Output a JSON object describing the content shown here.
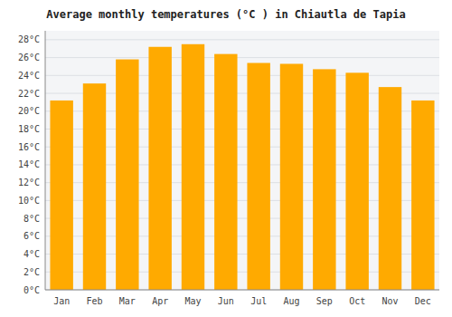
{
  "chart_data": {
    "type": "bar",
    "title": "Average monthly temperatures (°C ) in Chiautla de Tapia",
    "categories": [
      "Jan",
      "Feb",
      "Mar",
      "Apr",
      "May",
      "Jun",
      "Jul",
      "Aug",
      "Sep",
      "Oct",
      "Nov",
      "Dec"
    ],
    "values": [
      21.2,
      23.1,
      25.8,
      27.2,
      27.5,
      26.4,
      25.4,
      25.3,
      24.7,
      24.3,
      22.7,
      21.2
    ],
    "color": "#FFAA00",
    "ylim": [
      0,
      29
    ],
    "yticks": [
      {
        "value": 0,
        "label": "0°C"
      },
      {
        "value": 2,
        "label": "2°C"
      },
      {
        "value": 4,
        "label": "4°C"
      },
      {
        "value": 6,
        "label": "6°C"
      },
      {
        "value": 8,
        "label": "8°C"
      },
      {
        "value": 10,
        "label": "10°C"
      },
      {
        "value": 12,
        "label": "12°C"
      },
      {
        "value": 14,
        "label": "14°C"
      },
      {
        "value": 16,
        "label": "16°C"
      },
      {
        "value": 18,
        "label": "18°C"
      },
      {
        "value": 20,
        "label": "20°C"
      },
      {
        "value": 22,
        "label": "22°C"
      },
      {
        "value": 24,
        "label": "24°C"
      },
      {
        "value": 26,
        "label": "26°C"
      },
      {
        "value": 28,
        "label": "28°C"
      }
    ],
    "grid": true
  }
}
